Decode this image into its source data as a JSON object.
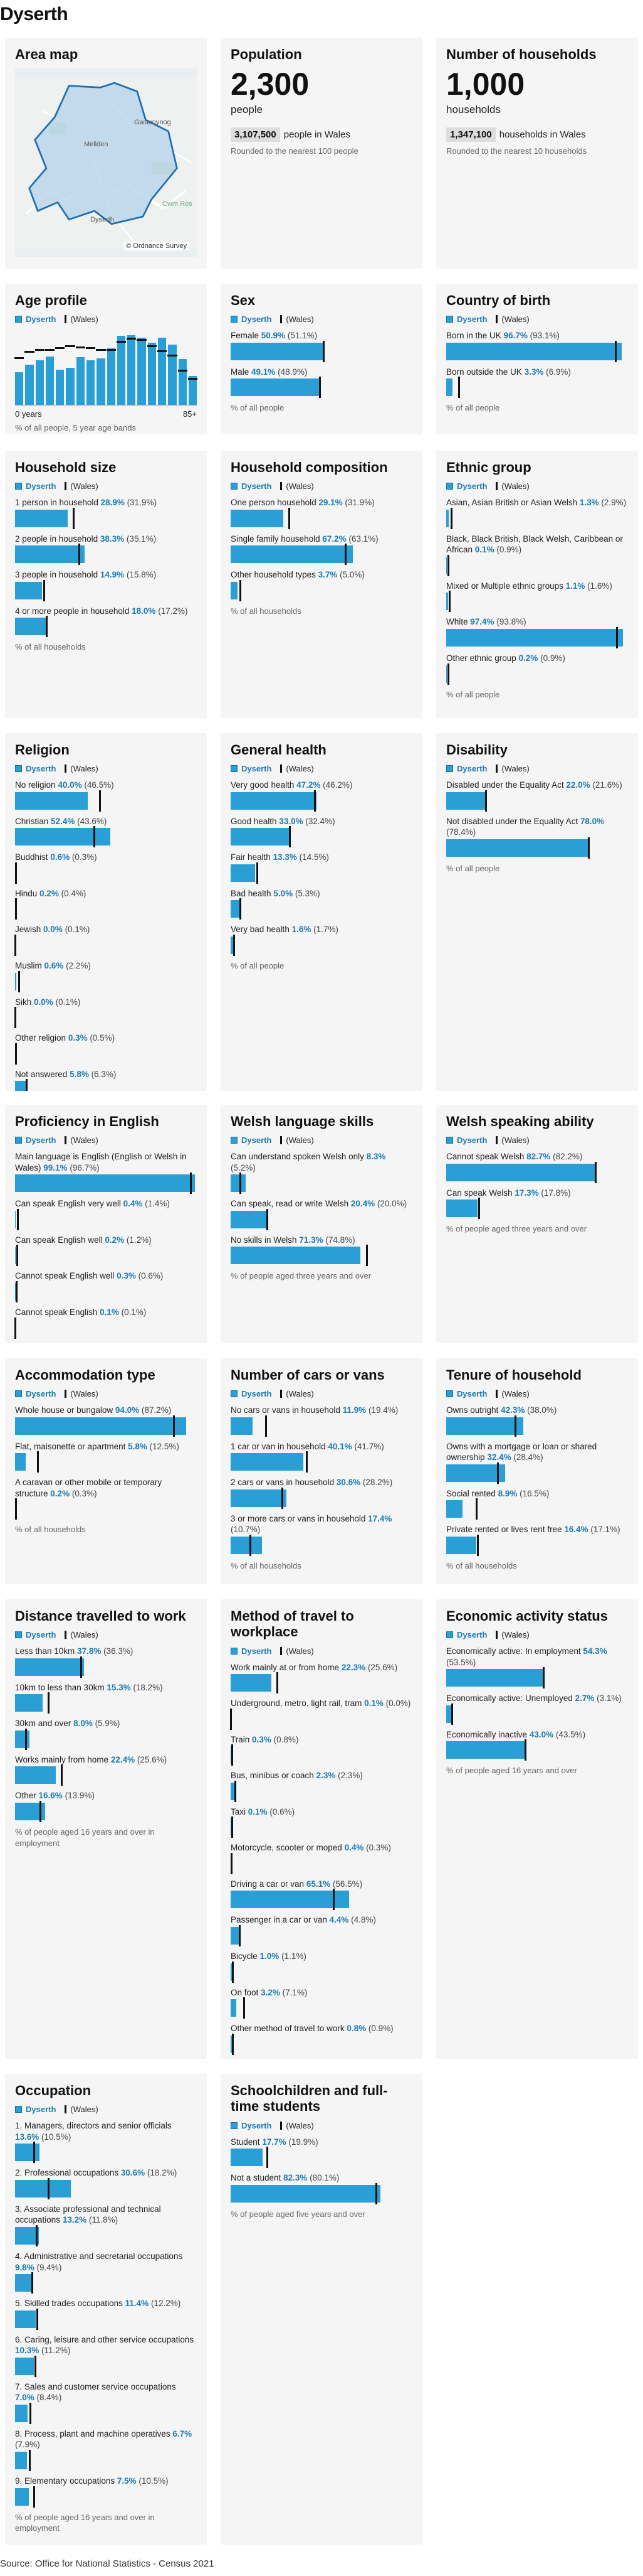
{
  "page": {
    "title": "Dyserth",
    "source": "Source: Office for National Statistics - Census 2021"
  },
  "legend": {
    "area": "Dyserth",
    "wales": "(Wales)"
  },
  "area_map": {
    "title": "Area map",
    "copyright": "© Ordnance Survey",
    "places": [
      "Gwaenynog",
      "Meliden",
      "Dyserth",
      "Cwm Ros"
    ]
  },
  "population": {
    "title": "Population",
    "value": "2,300",
    "unit": "people",
    "wales_value": "3,107,500",
    "wales_text": "people in Wales",
    "note": "Rounded to the nearest 100 people"
  },
  "households": {
    "title": "Number of households",
    "value": "1,000",
    "unit": "households",
    "wales_value": "1,347,100",
    "wales_text": "households in Wales",
    "note": "Rounded to the nearest 10 households"
  },
  "age": {
    "title": "Age profile",
    "axis_min": "0 years",
    "axis_max": "85+",
    "note": "% of all people, 5 year age bands",
    "area": [
      3.5,
      4.3,
      4.8,
      5.2,
      3.8,
      4.0,
      5.1,
      4.8,
      5.0,
      6.1,
      7.4,
      7.5,
      7.2,
      6.7,
      7.2,
      6.5,
      4.9,
      3.1
    ],
    "wales": [
      4.9,
      5.6,
      5.8,
      5.8,
      6.0,
      6.2,
      6.1,
      6.0,
      5.8,
      5.8,
      6.7,
      7.0,
      6.9,
      6.2,
      5.7,
      5.2,
      3.6,
      2.7
    ],
    "max": 8
  },
  "cards": [
    {
      "id": "sex",
      "title": "Sex",
      "note": "% of all people",
      "rows": [
        {
          "label": "Female",
          "a": 50.9,
          "w": 51.1
        },
        {
          "label": "Male",
          "a": 49.1,
          "w": 48.9
        }
      ]
    },
    {
      "id": "birth",
      "title": "Country of birth",
      "note": "% of all people",
      "rows": [
        {
          "label": "Born in the UK",
          "a": 96.7,
          "w": 93.1
        },
        {
          "label": "Born outside the UK",
          "a": 3.3,
          "w": 6.9
        }
      ]
    },
    {
      "id": "hhsize",
      "title": "Household size",
      "note": "% of all households",
      "rows": [
        {
          "label": "1 person in household",
          "a": 28.9,
          "w": 31.9
        },
        {
          "label": "2 people in household",
          "a": 38.3,
          "w": 35.1
        },
        {
          "label": "3 people in household",
          "a": 14.9,
          "w": 15.8
        },
        {
          "label": "4 or more people in household",
          "a": 18.0,
          "w": 17.2
        }
      ]
    },
    {
      "id": "hhcomp",
      "title": "Household composition",
      "note": "% of all households",
      "rows": [
        {
          "label": "One person household",
          "a": 29.1,
          "w": 31.9
        },
        {
          "label": "Single family household",
          "a": 67.2,
          "w": 63.1
        },
        {
          "label": "Other household types",
          "a": 3.7,
          "w": 5.0
        }
      ]
    },
    {
      "id": "ethnic",
      "title": "Ethnic group",
      "note": "% of all people",
      "rows": [
        {
          "label": "Asian, Asian British or Asian Welsh",
          "a": 1.3,
          "w": 2.9
        },
        {
          "label": "Black, Black British, Black Welsh, Caribbean or African",
          "a": 0.1,
          "w": 0.9
        },
        {
          "label": "Mixed or Multiple ethnic groups",
          "a": 1.1,
          "w": 1.6
        },
        {
          "label": "White",
          "a": 97.4,
          "w": 93.8
        },
        {
          "label": "Other ethnic group",
          "a": 0.2,
          "w": 0.9
        }
      ]
    },
    {
      "id": "religion",
      "title": "Religion",
      "note": "% of all people",
      "rows": [
        {
          "label": "No religion",
          "a": 40.0,
          "w": 46.5
        },
        {
          "label": "Christian",
          "a": 52.4,
          "w": 43.6
        },
        {
          "label": "Buddhist",
          "a": 0.6,
          "w": 0.3
        },
        {
          "label": "Hindu",
          "a": 0.2,
          "w": 0.4
        },
        {
          "label": "Jewish",
          "a": 0.0,
          "w": 0.1
        },
        {
          "label": "Muslim",
          "a": 0.6,
          "w": 2.2
        },
        {
          "label": "Sikh",
          "a": 0.0,
          "w": 0.1
        },
        {
          "label": "Other religion",
          "a": 0.3,
          "w": 0.5
        },
        {
          "label": "Not answered",
          "a": 5.8,
          "w": 6.3
        }
      ]
    },
    {
      "id": "health",
      "title": "General health",
      "note": "% of all people",
      "rows": [
        {
          "label": "Very good health",
          "a": 47.2,
          "w": 46.2
        },
        {
          "label": "Good health",
          "a": 33.0,
          "w": 32.4
        },
        {
          "label": "Fair health",
          "a": 13.3,
          "w": 14.5
        },
        {
          "label": "Bad health",
          "a": 5.0,
          "w": 5.3
        },
        {
          "label": "Very bad health",
          "a": 1.6,
          "w": 1.7
        }
      ]
    },
    {
      "id": "disability",
      "title": "Disability",
      "note": "% of all people",
      "rows": [
        {
          "label": "Disabled under the Equality Act",
          "a": 22.0,
          "w": 21.6
        },
        {
          "label": "Not disabled under the Equality Act",
          "a": 78.0,
          "w": 78.4
        }
      ]
    },
    {
      "id": "english",
      "title": "Proficiency in English",
      "note": "% of people aged three years and over",
      "rows": [
        {
          "label": "Main language is English (English or Welsh in Wales)",
          "a": 99.1,
          "w": 96.7
        },
        {
          "label": "Can speak English very well",
          "a": 0.4,
          "w": 1.4
        },
        {
          "label": "Can speak English well",
          "a": 0.2,
          "w": 1.2
        },
        {
          "label": "Cannot speak English well",
          "a": 0.3,
          "w": 0.6
        },
        {
          "label": "Cannot speak English",
          "a": 0.1,
          "w": 0.1
        }
      ]
    },
    {
      "id": "welshskills",
      "title": "Welsh language skills",
      "note": "% of people aged three years and over",
      "rows": [
        {
          "label": "Can understand spoken Welsh only",
          "a": 8.3,
          "w": 5.2
        },
        {
          "label": "Can speak, read or write Welsh",
          "a": 20.4,
          "w": 20.0
        },
        {
          "label": "No skills in Welsh",
          "a": 71.3,
          "w": 74.8
        }
      ]
    },
    {
      "id": "welshspeak",
      "title": "Welsh speaking ability",
      "note": "% of people aged three years and over",
      "rows": [
        {
          "label": "Cannot speak Welsh",
          "a": 82.7,
          "w": 82.2
        },
        {
          "label": "Can speak Welsh",
          "a": 17.3,
          "w": 17.8
        }
      ]
    },
    {
      "id": "accom",
      "title": "Accommodation type",
      "note": "% of all households",
      "rows": [
        {
          "label": "Whole house or bungalow",
          "a": 94.0,
          "w": 87.2
        },
        {
          "label": "Flat, maisonette or apartment",
          "a": 5.8,
          "w": 12.5
        },
        {
          "label": "A caravan or other mobile or temporary structure",
          "a": 0.2,
          "w": 0.3
        }
      ]
    },
    {
      "id": "cars",
      "title": "Number of cars or vans",
      "note": "% of all households",
      "rows": [
        {
          "label": "No cars or vans in household",
          "a": 11.9,
          "w": 19.4
        },
        {
          "label": "1 car or van in household",
          "a": 40.1,
          "w": 41.7
        },
        {
          "label": "2 cars or vans in household",
          "a": 30.6,
          "w": 28.2
        },
        {
          "label": "3 or more cars or vans in household",
          "a": 17.4,
          "w": 10.7
        }
      ]
    },
    {
      "id": "tenure",
      "title": "Tenure of household",
      "note": "% of all households",
      "rows": [
        {
          "label": "Owns outright",
          "a": 42.3,
          "w": 38.0
        },
        {
          "label": "Owns with a mortgage or loan or shared ownership",
          "a": 32.4,
          "w": 28.4
        },
        {
          "label": "Social rented",
          "a": 8.9,
          "w": 16.5
        },
        {
          "label": "Private rented or lives rent free",
          "a": 16.4,
          "w": 17.1
        }
      ]
    },
    {
      "id": "distance",
      "title": "Distance travelled to work",
      "note": "% of people aged 16 years and over in employment",
      "rows": [
        {
          "label": "Less than 10km",
          "a": 37.8,
          "w": 36.3
        },
        {
          "label": "10km to less than 30km",
          "a": 15.3,
          "w": 18.2
        },
        {
          "label": "30km and over",
          "a": 8.0,
          "w": 5.9
        },
        {
          "label": "Works mainly from home",
          "a": 22.4,
          "w": 25.6
        },
        {
          "label": "Other",
          "a": 16.6,
          "w": 13.9
        }
      ]
    },
    {
      "id": "method",
      "title": "Method of travel to workplace",
      "note": "% of people aged 16 years and over in employment",
      "rows": [
        {
          "label": "Work mainly at or from home",
          "a": 22.3,
          "w": 25.6
        },
        {
          "label": "Underground, metro, light rail, tram",
          "a": 0.1,
          "w": 0.0
        },
        {
          "label": "Train",
          "a": 0.3,
          "w": 0.8
        },
        {
          "label": "Bus, minibus or coach",
          "a": 2.3,
          "w": 2.3
        },
        {
          "label": "Taxi",
          "a": 0.1,
          "w": 0.6
        },
        {
          "label": "Motorcycle, scooter or moped",
          "a": 0.4,
          "w": 0.3
        },
        {
          "label": "Driving a car or van",
          "a": 65.1,
          "w": 56.5
        },
        {
          "label": "Passenger in a car or van",
          "a": 4.4,
          "w": 4.8
        },
        {
          "label": "Bicycle",
          "a": 1.0,
          "w": 1.1
        },
        {
          "label": "On foot",
          "a": 3.2,
          "w": 7.1
        },
        {
          "label": "Other method of travel to work",
          "a": 0.8,
          "w": 0.9
        }
      ]
    },
    {
      "id": "econ",
      "title": "Economic activity status",
      "note": "% of people aged 16 years and over",
      "rows": [
        {
          "label": "Economically active: In employment",
          "a": 54.3,
          "w": 53.5
        },
        {
          "label": "Economically active: Unemployed",
          "a": 2.7,
          "w": 3.1
        },
        {
          "label": "Economically inactive",
          "a": 43.0,
          "w": 43.5
        }
      ]
    },
    {
      "id": "occ",
      "title": "Occupation",
      "note": "% of people aged 16 years and over in employment",
      "rows": [
        {
          "label": "1. Managers, directors and senior officials",
          "a": 13.6,
          "w": 10.5
        },
        {
          "label": "2. Professional occupations",
          "a": 30.6,
          "w": 18.2
        },
        {
          "label": "3. Associate professional and technical occupations",
          "a": 13.2,
          "w": 11.8
        },
        {
          "label": "4. Administrative and secretarial occupations",
          "a": 9.8,
          "w": 9.4
        },
        {
          "label": "5. Skilled trades occupations",
          "a": 11.4,
          "w": 12.2
        },
        {
          "label": "6. Caring, leisure and other service occupations",
          "a": 10.3,
          "w": 11.2
        },
        {
          "label": "7. Sales and customer service occupations",
          "a": 7.0,
          "w": 8.4
        },
        {
          "label": "8. Process, plant and machine operatives",
          "a": 6.7,
          "w": 7.9
        },
        {
          "label": "9. Elementary occupations",
          "a": 7.5,
          "w": 10.5
        }
      ]
    },
    {
      "id": "students",
      "title": "Schoolchildren and full-time students",
      "note": "% of people aged five years and over",
      "rows": [
        {
          "label": "Student",
          "a": 17.7,
          "w": 19.9
        },
        {
          "label": "Not a student",
          "a": 82.3,
          "w": 80.1
        }
      ]
    }
  ]
}
